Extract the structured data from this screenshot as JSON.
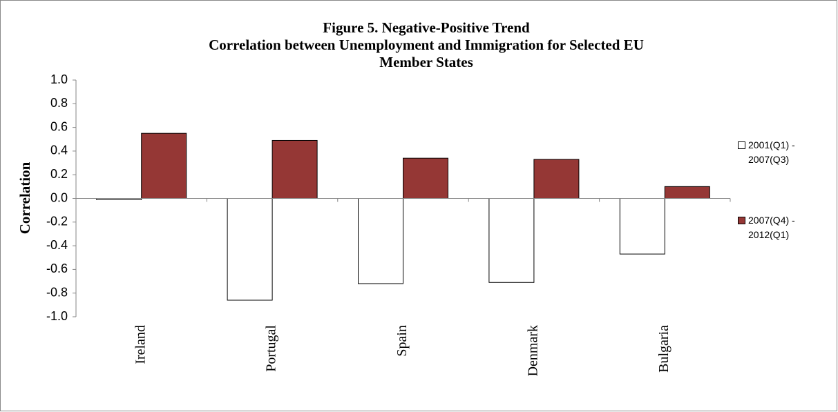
{
  "chart_data": {
    "type": "bar",
    "title": [
      "Figure 5. Negative-Positive Trend",
      "Correlation between Unemployment and Immigration for Selected EU",
      "Member States"
    ],
    "y_label": "Correlation",
    "categories": [
      "Ireland",
      "Portugal",
      "Spain",
      "Denmark",
      "Bulgaria"
    ],
    "series": [
      {
        "name": "2001(Q1) - 2007(Q3)",
        "color": "#ffffff",
        "values": [
          -0.01,
          -0.86,
          -0.72,
          -0.71,
          -0.47
        ]
      },
      {
        "name": "2007(Q4) - 2012(Q1)",
        "color": "#953735",
        "values": [
          0.55,
          0.49,
          0.34,
          0.33,
          0.1
        ]
      }
    ],
    "ylim": [
      -1,
      1
    ],
    "yticks": [
      {
        "value": -1,
        "label": "-1.0"
      },
      -0.8,
      -0.6,
      -0.4,
      -0.2,
      {
        "value": 0,
        "label": "0.0"
      },
      0.2,
      0.4,
      0.6,
      0.8,
      {
        "value": 1,
        "label": "1.0"
      }
    ],
    "grid": false,
    "legend": "right"
  }
}
